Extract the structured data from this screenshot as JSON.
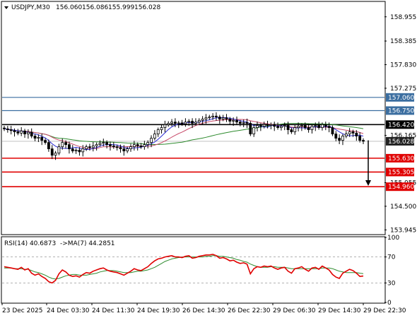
{
  "header": {
    "symbol": "USDJPY,M30",
    "open": "156.060",
    "high": "156.086",
    "low": "155.999",
    "close": "156.028"
  },
  "rsi_header": {
    "label": "RSI(14) 40.6873",
    "ma_label": "->MA(7) 44.2851"
  },
  "colors": {
    "bull_candle": "#000000",
    "bear_candle": "#000000",
    "ma_fast": "#2b2bd6",
    "ma_slow": "#2e8b2e",
    "ma_mid": "#c84a6a",
    "blue_level": "#3b6ea0",
    "black_level": "#000000",
    "red_level": "#e00000",
    "rsi_line": "#e00000",
    "rsi_ma": "#2e8b2e",
    "badge_blue": "#3b6ea0",
    "badge_black": "#000000",
    "badge_red": "#e00000",
    "badge_current": "#222222"
  },
  "chart_data": {
    "type": "candlestick",
    "ylim": [
      153.85,
      159.3
    ],
    "y_ticks": [
      "158.955",
      "158.385",
      "157.830",
      "157.275",
      "156.165",
      "155.055",
      "154.500",
      "153.945"
    ],
    "x_ticks": [
      "23 Dec 2025",
      "24 Dec 03:30",
      "24 Dec 11:30",
      "24 Dec 19:30",
      "26 Dec 14:30",
      "26 Dec 22:30",
      "29 Dec 06:30",
      "29 Dec 14:30",
      "29 Dec 22:30"
    ],
    "current_price": 156.028,
    "levels": [
      {
        "price": 157.06,
        "label": "157.060",
        "kind": "blue"
      },
      {
        "price": 156.75,
        "label": "156.750",
        "kind": "blue"
      },
      {
        "price": 156.42,
        "label": "156.420",
        "kind": "black"
      },
      {
        "price": 155.63,
        "label": "155.630",
        "kind": "red"
      },
      {
        "price": 155.305,
        "label": "155.305",
        "kind": "red"
      },
      {
        "price": 154.96,
        "label": "154.960",
        "kind": "red"
      }
    ],
    "arrow": {
      "from_price": 156.05,
      "to_price": 154.98
    },
    "closes": [
      156.32,
      156.3,
      156.28,
      156.25,
      156.22,
      156.27,
      156.2,
      156.24,
      156.15,
      156.1,
      156.12,
      156.05,
      156.0,
      155.85,
      155.7,
      155.75,
      155.9,
      156.0,
      155.95,
      155.85,
      155.8,
      155.82,
      155.78,
      155.85,
      155.9,
      155.88,
      155.92,
      155.95,
      155.98,
      156.0,
      155.95,
      155.92,
      155.9,
      155.88,
      155.85,
      155.8,
      155.85,
      155.9,
      155.95,
      155.92,
      155.9,
      155.95,
      156.0,
      156.1,
      156.2,
      156.3,
      156.35,
      156.42,
      156.45,
      156.48,
      156.45,
      156.46,
      156.44,
      156.48,
      156.5,
      156.45,
      156.48,
      156.52,
      156.55,
      156.58,
      156.6,
      156.62,
      156.6,
      156.55,
      156.58,
      156.55,
      156.5,
      156.52,
      156.48,
      156.45,
      156.47,
      156.45,
      156.2,
      156.35,
      156.4,
      156.38,
      156.42,
      156.4,
      156.42,
      156.38,
      156.35,
      156.38,
      156.4,
      156.3,
      156.25,
      156.35,
      156.38,
      156.4,
      156.35,
      156.3,
      156.38,
      156.4,
      156.35,
      156.42,
      156.38,
      156.35,
      156.2,
      156.1,
      156.05,
      156.15,
      156.2,
      156.25,
      156.22,
      156.15,
      156.05,
      156.03
    ],
    "rsi": {
      "ylim": [
        0,
        100
      ],
      "ticks": [
        "100",
        "70",
        "30",
        "0"
      ],
      "levels": [
        70,
        30
      ],
      "values": [
        55,
        54,
        53,
        52,
        51,
        54,
        50,
        52,
        45,
        42,
        44,
        40,
        37,
        32,
        30,
        34,
        44,
        50,
        47,
        42,
        40,
        41,
        39,
        43,
        46,
        45,
        48,
        50,
        52,
        53,
        50,
        48,
        47,
        46,
        44,
        42,
        45,
        48,
        52,
        50,
        49,
        52,
        55,
        60,
        64,
        67,
        68,
        70,
        71,
        72,
        70,
        70,
        69,
        71,
        72,
        68,
        69,
        71,
        72,
        73,
        73,
        74,
        72,
        68,
        69,
        67,
        64,
        65,
        62,
        60,
        61,
        59,
        44,
        52,
        55,
        54,
        56,
        55,
        56,
        53,
        51,
        53,
        54,
        48,
        45,
        52,
        53,
        55,
        51,
        48,
        53,
        54,
        51,
        56,
        53,
        50,
        43,
        39,
        37,
        45,
        48,
        51,
        49,
        45,
        40,
        40.7
      ],
      "ma_values": [
        53,
        53,
        53,
        52,
        52,
        52,
        51,
        51,
        49,
        47,
        46,
        44,
        42,
        39,
        37,
        36,
        37,
        39,
        41,
        42,
        43,
        43,
        42,
        42,
        42,
        43,
        44,
        45,
        47,
        48,
        49,
        49,
        49,
        48,
        47,
        46,
        46,
        46,
        47,
        48,
        48,
        49,
        50,
        52,
        54,
        57,
        60,
        63,
        65,
        67,
        68,
        69,
        70,
        70,
        70,
        70,
        70,
        70,
        70,
        71,
        71,
        72,
        72,
        71,
        71,
        70,
        69,
        68,
        66,
        65,
        63,
        62,
        59,
        57,
        55,
        54,
        54,
        54,
        55,
        55,
        54,
        54,
        54,
        53,
        52,
        52,
        52,
        52,
        52,
        52,
        52,
        52,
        52,
        53,
        53,
        53,
        52,
        50,
        48,
        47,
        46,
        46,
        46,
        46,
        45,
        44.3
      ]
    }
  }
}
